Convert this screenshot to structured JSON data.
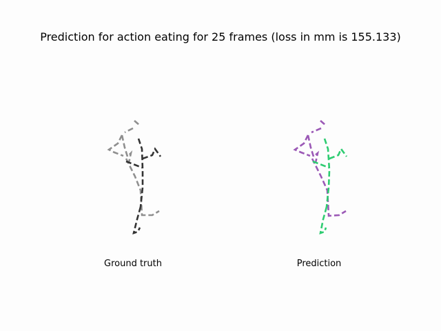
{
  "title": "Prediction for action eating for 25 frames (loss in mm is 155.133)",
  "panels": [
    {
      "caption": "Ground truth",
      "left_color": "#8f8f8f",
      "right_color": "#333333"
    },
    {
      "caption": "Prediction",
      "left_color": "#9b59b6",
      "right_color": "#2ecc71"
    }
  ]
}
